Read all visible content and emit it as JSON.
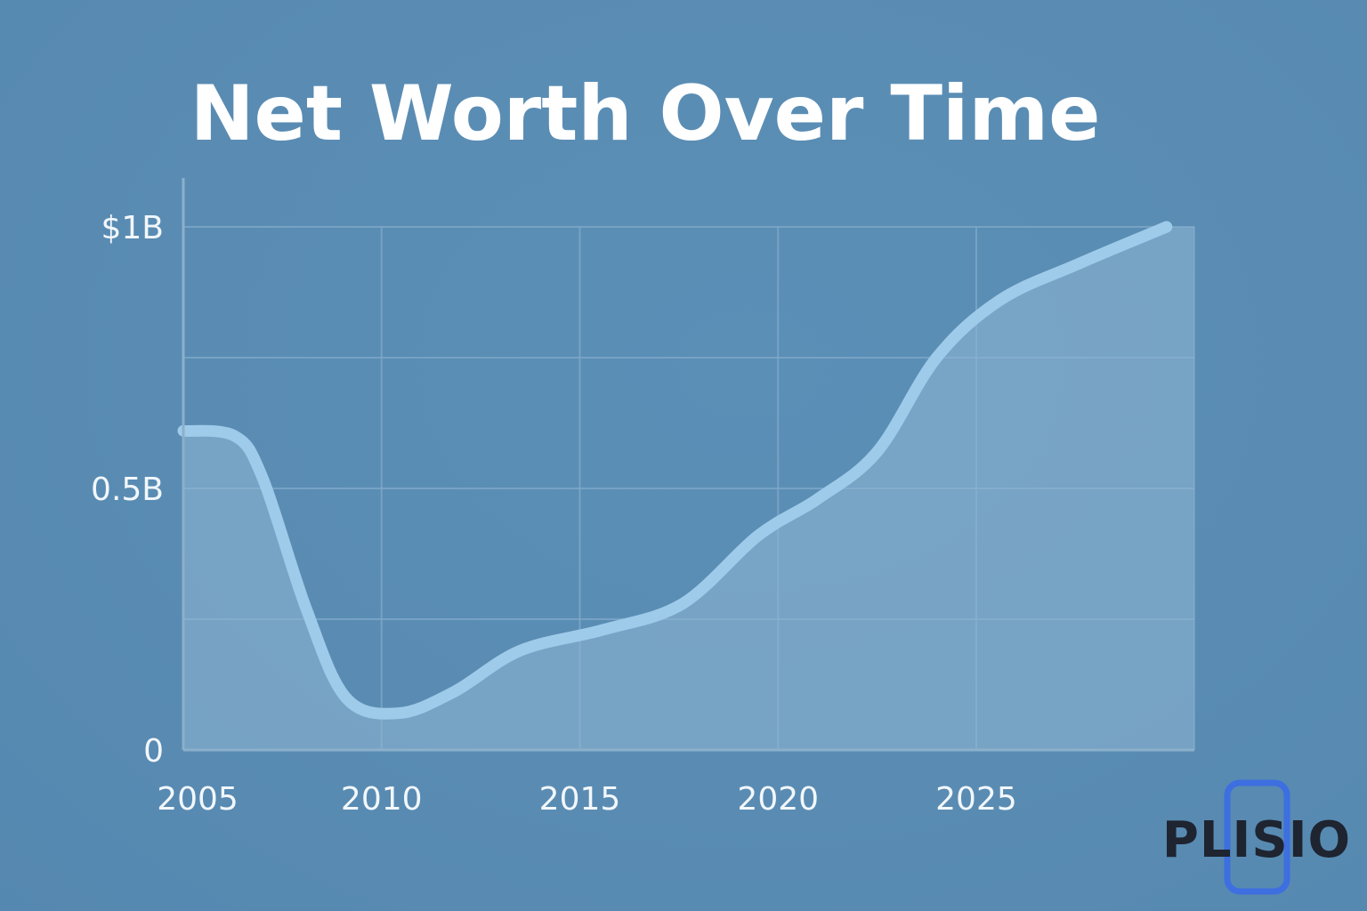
{
  "chart_data": {
    "type": "area",
    "title": "Net Worth Over Time",
    "xlabel": "",
    "ylabel": "",
    "x_ticks": [
      2005,
      2010,
      2015,
      2020,
      2025
    ],
    "x_tick_labels": [
      "2005",
      "2010",
      "2015",
      "2020",
      "2025"
    ],
    "y_ticks": [
      0,
      0.5,
      1
    ],
    "y_tick_labels": [
      "0",
      "0.5B",
      "$1B"
    ],
    "xlim": [
      2005,
      2030.5
    ],
    "ylim": [
      0,
      1
    ],
    "grid": true,
    "legend": "none",
    "series": [
      {
        "x": [
          2005,
          2006.3,
          2007,
          2008.1,
          2009.1,
          2010.4,
          2011.8,
          2013.5,
          2015.6,
          2017.6,
          2019.5,
          2021,
          2022.5,
          2024,
          2025.6,
          2027.6,
          2029.8
        ],
        "values": [
          0.61,
          0.6,
          0.52,
          0.27,
          0.1,
          0.07,
          0.11,
          0.19,
          0.23,
          0.28,
          0.41,
          0.48,
          0.57,
          0.75,
          0.86,
          0.93,
          1.0
        ]
      }
    ],
    "colors": {
      "line": "#9fcbea",
      "fill": "#8fb6d4",
      "grid": "#7fa8c8",
      "axis": "#8bb0cc"
    }
  },
  "logo": {
    "text": "PLISIO",
    "color": "#1e2430",
    "accent": "#3d6fe0"
  }
}
